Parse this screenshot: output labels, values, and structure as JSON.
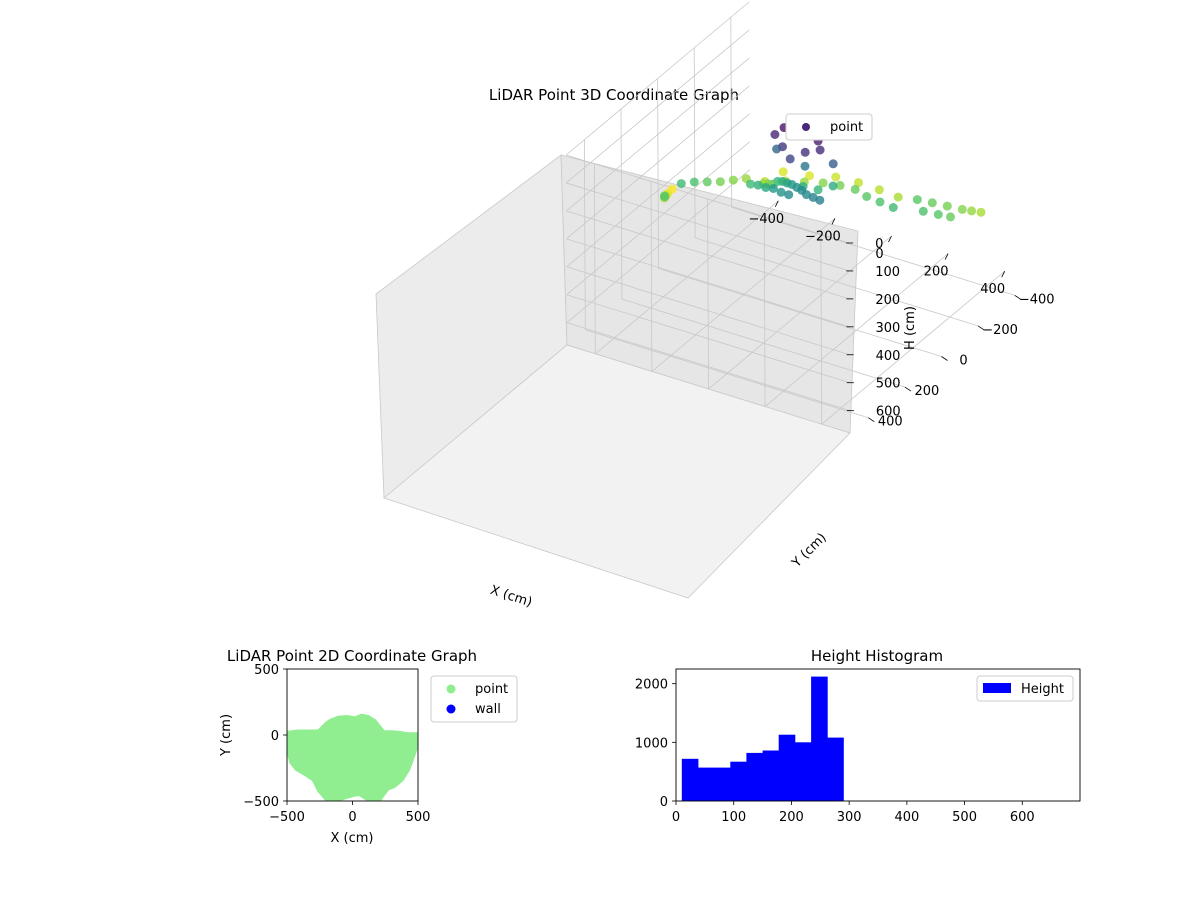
{
  "chart_data": [
    {
      "type": "scatter",
      "projection": "3d",
      "title": "LiDAR Point 3D Coordinate Graph",
      "xlabel": "X (cm)",
      "ylabel": "Y (cm)",
      "zlabel": "H (cm)",
      "xticks": [
        -400,
        -200,
        0,
        200,
        400
      ],
      "yticks": [
        -400,
        -200,
        0,
        200,
        400
      ],
      "zticks": [
        0,
        100,
        200,
        300,
        400,
        500,
        600
      ],
      "xlim": [
        -500,
        500
      ],
      "ylim": [
        -500,
        500
      ],
      "zlim": [
        0,
        680
      ],
      "zaxis_inverted": true,
      "colormap": "viridis",
      "legend": {
        "position": "upper-right",
        "entries": [
          {
            "label": "point",
            "color": "#482878"
          }
        ]
      },
      "grid": true,
      "series": [
        {
          "name": "point",
          "points": [
            {
              "x": -180,
              "y": -80,
              "z": 320
            },
            {
              "x": -150,
              "y": -60,
              "z": 300
            },
            {
              "x": -120,
              "y": -40,
              "z": 280
            },
            {
              "x": -90,
              "y": -20,
              "z": 250
            },
            {
              "x": -60,
              "y": 0,
              "z": 230
            },
            {
              "x": -30,
              "y": 20,
              "z": 215
            },
            {
              "x": 0,
              "y": 40,
              "z": 200
            },
            {
              "x": 30,
              "y": 60,
              "z": 190
            },
            {
              "x": 60,
              "y": 80,
              "z": 180
            },
            {
              "x": 90,
              "y": 100,
              "z": 175
            },
            {
              "x": 120,
              "y": 110,
              "z": 170
            },
            {
              "x": 150,
              "y": 120,
              "z": 165
            },
            {
              "x": -160,
              "y": 20,
              "z": 260
            },
            {
              "x": -120,
              "y": 40,
              "z": 240
            },
            {
              "x": -80,
              "y": 60,
              "z": 225
            },
            {
              "x": -40,
              "y": 80,
              "z": 205
            },
            {
              "x": 0,
              "y": 100,
              "z": 195
            },
            {
              "x": 40,
              "y": 120,
              "z": 180
            },
            {
              "x": -200,
              "y": -120,
              "z": 340
            },
            {
              "x": -140,
              "y": -140,
              "z": 330
            },
            {
              "x": -80,
              "y": -150,
              "z": 320
            },
            {
              "x": -20,
              "y": -160,
              "z": 310
            },
            {
              "x": 40,
              "y": -160,
              "z": 300
            },
            {
              "x": 100,
              "y": -150,
              "z": 290
            },
            {
              "x": 160,
              "y": -120,
              "z": 280
            },
            {
              "x": 220,
              "y": -100,
              "z": 270
            },
            {
              "x": 280,
              "y": -80,
              "z": 260
            },
            {
              "x": -40,
              "y": 20,
              "z": 20
            },
            {
              "x": 0,
              "y": 20,
              "z": 10
            },
            {
              "x": 40,
              "y": 20,
              "z": 15
            },
            {
              "x": 80,
              "y": 20,
              "z": 30
            },
            {
              "x": -60,
              "y": 40,
              "z": 40
            },
            {
              "x": 100,
              "y": 40,
              "z": 45
            },
            {
              "x": -20,
              "y": 60,
              "z": 60
            },
            {
              "x": 60,
              "y": 60,
              "z": 55
            },
            {
              "x": 20,
              "y": 80,
              "z": 80
            },
            {
              "x": -80,
              "y": 0,
              "z": 120
            },
            {
              "x": 120,
              "y": 0,
              "z": 110
            },
            {
              "x": 20,
              "y": 0,
              "z": 150
            },
            {
              "x": 0,
              "y": -20,
              "z": 240
            },
            {
              "x": 40,
              "y": -40,
              "z": 250
            },
            {
              "x": 80,
              "y": -60,
              "z": 235
            },
            {
              "x": -360,
              "y": 180,
              "z": 280
            },
            {
              "x": -380,
              "y": 150,
              "z": 300
            },
            {
              "x": -400,
              "y": 120,
              "z": 330
            },
            {
              "x": -420,
              "y": 80,
              "z": 350
            },
            {
              "x": -440,
              "y": 40,
              "z": 370
            },
            {
              "x": -450,
              "y": 0,
              "z": 380
            },
            {
              "x": -340,
              "y": 120,
              "z": 260
            },
            {
              "x": -320,
              "y": 80,
              "z": 270
            },
            {
              "x": -300,
              "y": 40,
              "z": 285
            },
            {
              "x": -280,
              "y": 0,
              "z": 300
            },
            {
              "x": -260,
              "y": -40,
              "z": 310
            },
            {
              "x": -240,
              "y": -80,
              "z": 320
            },
            {
              "x": 300,
              "y": -180,
              "z": 280
            },
            {
              "x": 340,
              "y": -200,
              "z": 290
            },
            {
              "x": 380,
              "y": -220,
              "z": 300
            },
            {
              "x": 420,
              "y": -240,
              "z": 310
            },
            {
              "x": 440,
              "y": -260,
              "z": 320
            },
            {
              "x": 460,
              "y": -280,
              "z": 330
            },
            {
              "x": 360,
              "y": -120,
              "z": 270
            },
            {
              "x": 400,
              "y": -140,
              "z": 280
            },
            {
              "x": 430,
              "y": -160,
              "z": 290
            },
            {
              "x": -200,
              "y": -220,
              "z": 360
            },
            {
              "x": -120,
              "y": -240,
              "z": 360
            },
            {
              "x": -40,
              "y": -260,
              "z": 350
            },
            {
              "x": 40,
              "y": -260,
              "z": 345
            },
            {
              "x": 120,
              "y": -250,
              "z": 340
            },
            {
              "x": 200,
              "y": -230,
              "z": 330
            }
          ]
        }
      ]
    },
    {
      "type": "scatter",
      "title": "LiDAR Point 2D Coordinate Graph",
      "xlabel": "X (cm)",
      "ylabel": "Y (cm)",
      "xlim": [
        -500,
        500
      ],
      "ylim": [
        -500,
        500
      ],
      "xticks": [
        -500,
        0,
        500
      ],
      "yticks": [
        -500,
        0,
        500
      ],
      "legend": {
        "position": "outside-right",
        "entries": [
          {
            "label": "point",
            "color": "#90ee90"
          },
          {
            "label": "wall",
            "color": "#0000ff"
          }
        ]
      },
      "grid": false,
      "series": [
        {
          "name": "point",
          "color": "#90ee90",
          "outline": [
            [
              -500,
              20
            ],
            [
              -420,
              30
            ],
            [
              -340,
              30
            ],
            [
              -260,
              30
            ],
            [
              -230,
              60
            ],
            [
              -200,
              90
            ],
            [
              -170,
              110
            ],
            [
              -110,
              135
            ],
            [
              -40,
              140
            ],
            [
              20,
              130
            ],
            [
              70,
              150
            ],
            [
              120,
              140
            ],
            [
              170,
              110
            ],
            [
              210,
              60
            ],
            [
              240,
              25
            ],
            [
              300,
              25
            ],
            [
              360,
              20
            ],
            [
              420,
              10
            ],
            [
              500,
              10
            ],
            [
              500,
              -60
            ],
            [
              470,
              -150
            ],
            [
              430,
              -260
            ],
            [
              380,
              -340
            ],
            [
              320,
              -390
            ],
            [
              270,
              -410
            ],
            [
              240,
              -450
            ],
            [
              210,
              -490
            ],
            [
              140,
              -500
            ],
            [
              100,
              -480
            ],
            [
              50,
              -450
            ],
            [
              0,
              -460
            ],
            [
              -70,
              -480
            ],
            [
              -140,
              -500
            ],
            [
              -200,
              -490
            ],
            [
              -260,
              -420
            ],
            [
              -300,
              -340
            ],
            [
              -360,
              -300
            ],
            [
              -430,
              -260
            ],
            [
              -470,
              -210
            ],
            [
              -495,
              -120
            ],
            [
              -500,
              -40
            ]
          ]
        },
        {
          "name": "wall",
          "color": "#0000ff",
          "points": []
        }
      ]
    },
    {
      "type": "bar",
      "title": "Height Histogram",
      "xlabel": "",
      "ylabel": "",
      "xlim": [
        0,
        700
      ],
      "ylim": [
        0,
        2250
      ],
      "xticks": [
        0,
        100,
        200,
        300,
        400,
        500,
        600
      ],
      "yticks": [
        0,
        1000,
        2000
      ],
      "legend": {
        "position": "upper-right",
        "entries": [
          {
            "label": "Height",
            "color": "#0000ff"
          }
        ]
      },
      "grid": false,
      "bin_edges": [
        10,
        38,
        66,
        94,
        122,
        150,
        178,
        206,
        234,
        262,
        290
      ],
      "series": [
        {
          "name": "Height",
          "color": "#0000ff",
          "values": [
            720,
            570,
            570,
            670,
            820,
            860,
            1130,
            1000,
            2120,
            1080
          ]
        }
      ]
    }
  ]
}
